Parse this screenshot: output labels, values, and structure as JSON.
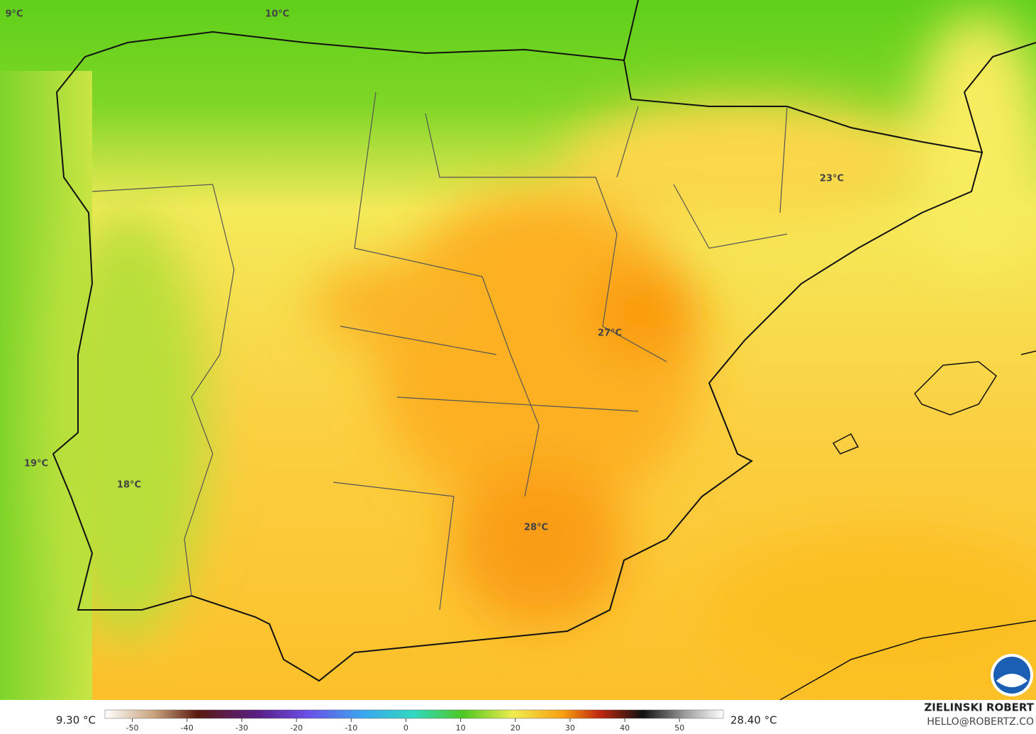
{
  "map": {
    "labels": [
      {
        "text": "9°C"
      },
      {
        "text": "10°C"
      },
      {
        "text": "23°C"
      },
      {
        "text": "27°C"
      },
      {
        "text": "19°C"
      },
      {
        "text": "18°C"
      },
      {
        "text": "28°C"
      }
    ],
    "colorbar": {
      "min_label": "9.30 °C",
      "max_label": "28.40 °C",
      "ticks": [
        -50,
        -40,
        -30,
        -20,
        -10,
        0,
        10,
        20,
        30,
        40,
        50
      ],
      "range": [
        -55,
        58
      ]
    },
    "credits": {
      "name": "ZIELINSKI ROBERT",
      "contact": "HELLO@ROBERTZ.CO"
    }
  }
}
